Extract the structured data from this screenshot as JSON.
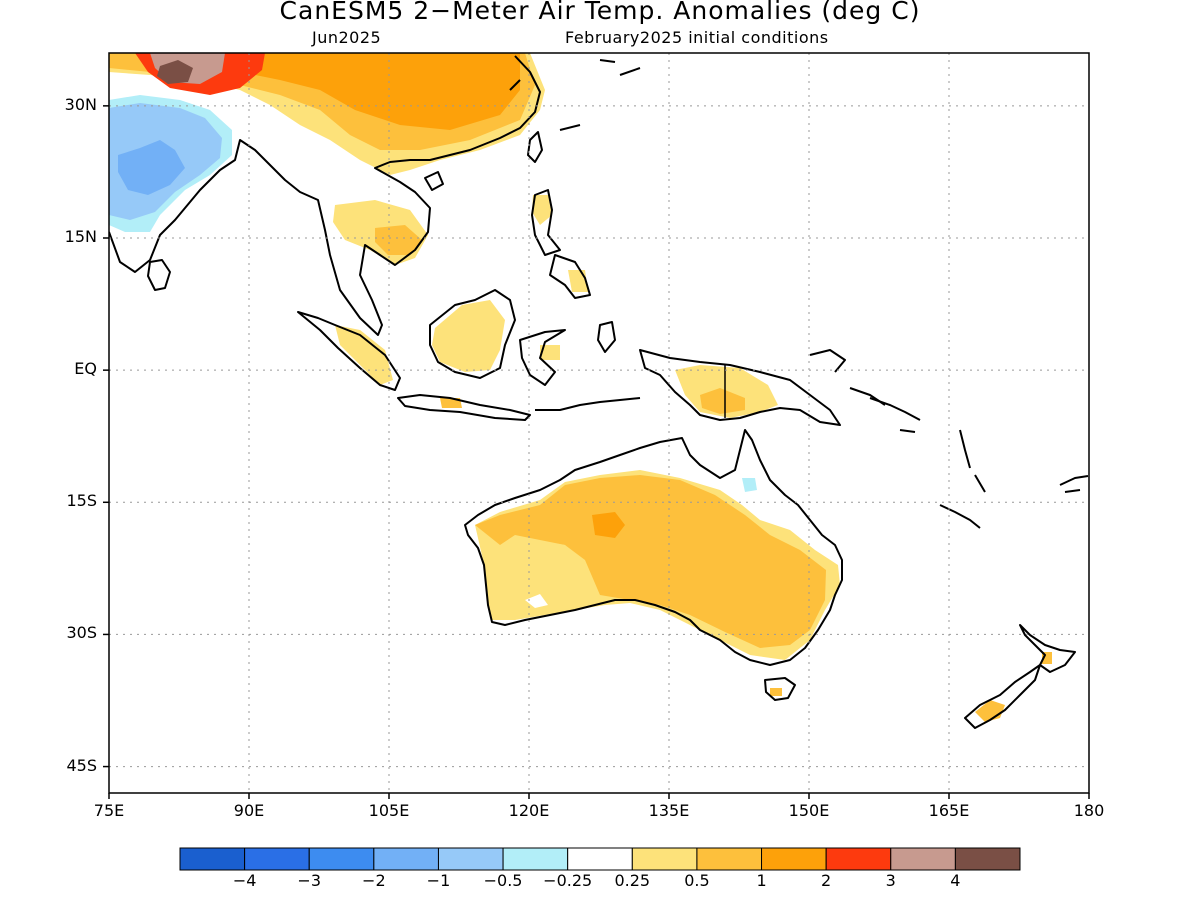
{
  "title": "CanESM5 2−Meter Air Temp. Anomalies (deg C)",
  "subtitle_left": "Jun2025",
  "subtitle_right": "February2025 initial conditions",
  "map": {
    "lon_range": [
      75,
      180
    ],
    "lat_range": [
      -48,
      36
    ],
    "grid": true,
    "y_ticks": [
      {
        "value": 30,
        "label": "30N"
      },
      {
        "value": 15,
        "label": "15N"
      },
      {
        "value": 0,
        "label": "EQ"
      },
      {
        "value": -15,
        "label": "15S"
      },
      {
        "value": -30,
        "label": "30S"
      },
      {
        "value": -45,
        "label": "45S"
      }
    ],
    "x_ticks": [
      {
        "value": 75,
        "label": "75E"
      },
      {
        "value": 90,
        "label": "90E"
      },
      {
        "value": 105,
        "label": "105E"
      },
      {
        "value": 120,
        "label": "120E"
      },
      {
        "value": 135,
        "label": "135E"
      },
      {
        "value": 150,
        "label": "150E"
      },
      {
        "value": 165,
        "label": "165E"
      },
      {
        "value": 180,
        "label": "180"
      }
    ]
  },
  "colorbar": {
    "colors": [
      "#1a5fcf",
      "#2a6fe6",
      "#3d8cf0",
      "#72b0f6",
      "#96c9f8",
      "#b2eef8",
      "#ffffff",
      "#fde27a",
      "#fdc03c",
      "#fda10a",
      "#fd3a0e",
      "#c79a8f",
      "#7a4f45"
    ],
    "labels": [
      "−4",
      "−3",
      "−2",
      "−1",
      "−0.5",
      "−0.25",
      "0.25",
      "0.5",
      "1",
      "2",
      "3",
      "4"
    ]
  },
  "legend_colors": {
    "c_025": "#fde27a",
    "c_05": "#fdc03c",
    "c_1": "#fda10a",
    "c_2": "#fd3a0e",
    "c_3": "#c79a8f",
    "c_4": "#7a4f45",
    "cm_025": "#b2eef8",
    "cm_05": "#96c9f8",
    "cm_1": "#72b0f6"
  }
}
